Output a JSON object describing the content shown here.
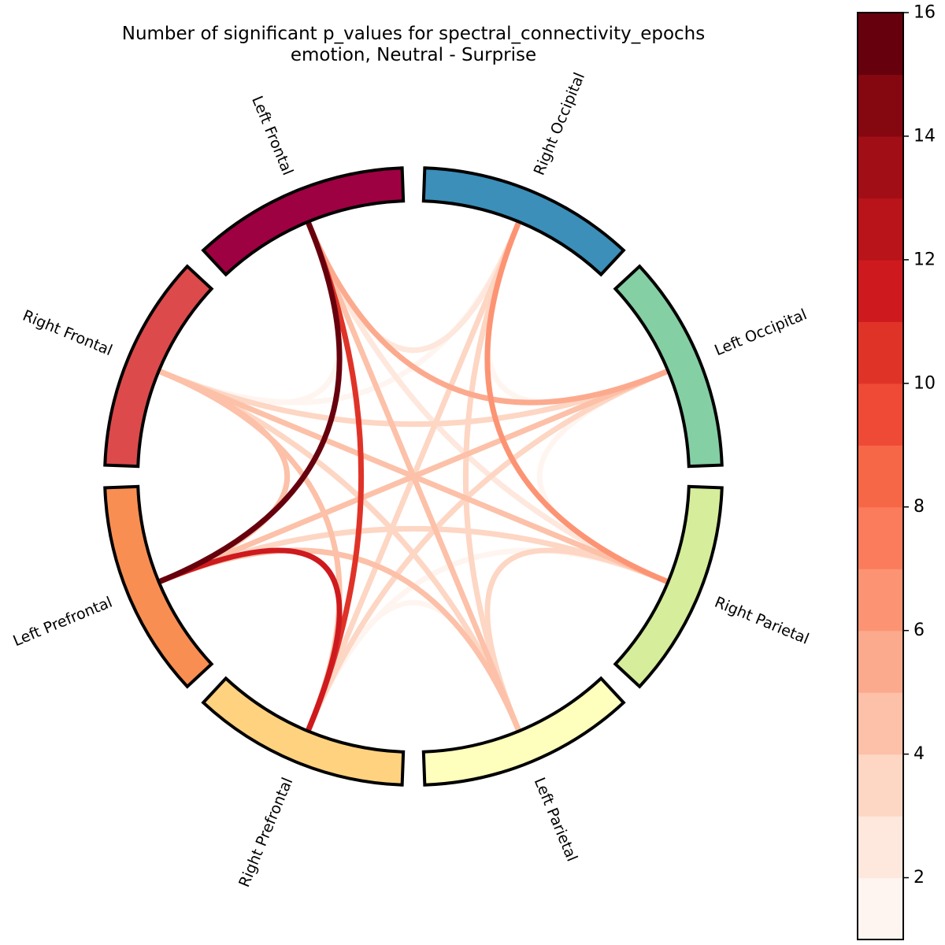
{
  "chart_data": {
    "type": "connectivity-circle",
    "title_line1": "Number of significant p_values for spectral_connectivity_epochs",
    "title_line2": "emotion, Neutral - Surprise",
    "nodes": [
      {
        "name": "Right Occipital",
        "color": "#3b8fb8"
      },
      {
        "name": "Left Occipital",
        "color": "#84cfa4"
      },
      {
        "name": "Right Parietal",
        "color": "#d6ed9b"
      },
      {
        "name": "Left Parietal",
        "color": "#fefebd"
      },
      {
        "name": "Right Prefrontal",
        "color": "#fed27f"
      },
      {
        "name": "Left Prefrontal",
        "color": "#f98e52"
      },
      {
        "name": "Right Frontal",
        "color": "#dc4a4c"
      },
      {
        "name": "Left Frontal",
        "color": "#9e0142"
      }
    ],
    "connections": [
      {
        "source": "Left Frontal",
        "target": "Left Prefrontal",
        "value": 15.6
      },
      {
        "source": "Left Frontal",
        "target": "Right Prefrontal",
        "value": 10.2
      },
      {
        "source": "Left Prefrontal",
        "target": "Right Prefrontal",
        "value": 11.2
      },
      {
        "source": "Right Occipital",
        "target": "Right Parietal",
        "value": 6.2
      },
      {
        "source": "Left Frontal",
        "target": "Left Occipital",
        "value": 5.4
      },
      {
        "source": "Right Occipital",
        "target": "Right Prefrontal",
        "value": 3.2
      },
      {
        "source": "Right Occipital",
        "target": "Left Parietal",
        "value": 3.8
      },
      {
        "source": "Right Occipital",
        "target": "Right Frontal",
        "value": 1.6
      },
      {
        "source": "Right Occipital",
        "target": "Left Frontal",
        "value": 2.0
      },
      {
        "source": "Right Occipital",
        "target": "Left Occipital",
        "value": 1.2
      },
      {
        "source": "Left Occipital",
        "target": "Right Prefrontal",
        "value": 3.2
      },
      {
        "source": "Left Occipital",
        "target": "Left Prefrontal",
        "value": 4.0
      },
      {
        "source": "Left Occipital",
        "target": "Right Frontal",
        "value": 3.6
      },
      {
        "source": "Left Occipital",
        "target": "Right Parietal",
        "value": 1.4
      },
      {
        "source": "Right Parietal",
        "target": "Left Prefrontal",
        "value": 3.6
      },
      {
        "source": "Right Parietal",
        "target": "Right Frontal",
        "value": 4.4
      },
      {
        "source": "Right Parietal",
        "target": "Left Parietal",
        "value": 3.2
      },
      {
        "source": "Right Parietal",
        "target": "Left Frontal",
        "value": 2.6
      },
      {
        "source": "Right Parietal",
        "target": "Right Prefrontal",
        "value": 1.8
      },
      {
        "source": "Left Parietal",
        "target": "Left Prefrontal",
        "value": 4.6
      },
      {
        "source": "Left Parietal",
        "target": "Left Frontal",
        "value": 4.0
      },
      {
        "source": "Left Parietal",
        "target": "Right Frontal",
        "value": 3.2
      },
      {
        "source": "Left Parietal",
        "target": "Right Prefrontal",
        "value": 1.4
      },
      {
        "source": "Right Prefrontal",
        "target": "Right Frontal",
        "value": 4.6
      },
      {
        "source": "Left Prefrontal",
        "target": "Right Frontal",
        "value": 4.8
      },
      {
        "source": "Left Frontal",
        "target": "Right Frontal",
        "value": 1.2
      }
    ],
    "colorbar": {
      "min": 1,
      "max": 16,
      "ticks": [
        2,
        4,
        6,
        8,
        10,
        12,
        14,
        16
      ],
      "colors": [
        "#fff5f0",
        "#fee7dc",
        "#fdd6c4",
        "#fcc1a8",
        "#fcaa8e",
        "#fc9474",
        "#fb7c5c",
        "#f66747",
        "#ef4a36",
        "#e03328",
        "#ce1a1e",
        "#b81419",
        "#a10e15",
        "#850811",
        "#67000d"
      ]
    }
  }
}
